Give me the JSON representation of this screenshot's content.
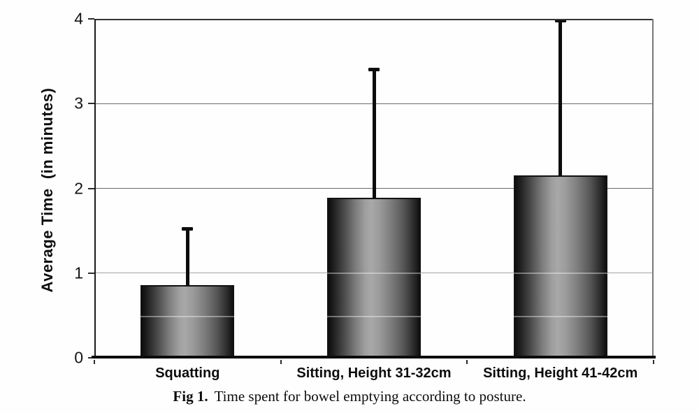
{
  "figure": {
    "caption": {
      "label": "Fig 1.",
      "text": "Time spent for bowel emptying according to posture."
    }
  },
  "chart_data": {
    "type": "bar",
    "title": "",
    "xlabel": "",
    "ylabel": "Average Time  (in minutes)",
    "ylim": [
      0,
      4
    ],
    "yticks": [
      0,
      1,
      2,
      3,
      4
    ],
    "grid": "horizontal gridlines at integer y values",
    "legend_position": "none",
    "categories": [
      "Squatting",
      "Sitting, Height 31-32cm",
      "Sitting, Height 41-42cm"
    ],
    "series": [
      {
        "name": "Average time (minutes)",
        "values": [
          0.86,
          1.89,
          2.15
        ],
        "error_bar_tops": [
          1.54,
          3.42,
          4.0
        ]
      }
    ],
    "colors": {
      "bar_dark": "#101010",
      "bar_light": "#a8a8a8",
      "bar_border": "#121212",
      "axis": "#0b0b0b",
      "gridline": "#6b6b6b",
      "text": "#0d0d0d",
      "background": "#ffffff"
    }
  }
}
